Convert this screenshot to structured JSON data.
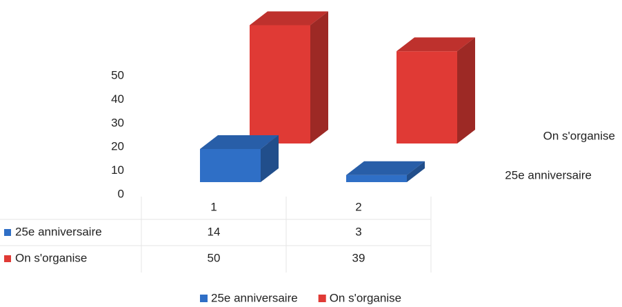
{
  "chart_data": {
    "type": "bar3d",
    "categories": [
      "1",
      "2"
    ],
    "series": [
      {
        "name": "25e anniversaire",
        "color": "#2f6fc6",
        "values": [
          14,
          3
        ]
      },
      {
        "name": "On s'organise",
        "color": "#e03a35",
        "values": [
          50,
          39
        ]
      }
    ],
    "ylim": [
      0,
      50
    ],
    "yticks": [
      0,
      10,
      20,
      30,
      40,
      50
    ]
  }
}
